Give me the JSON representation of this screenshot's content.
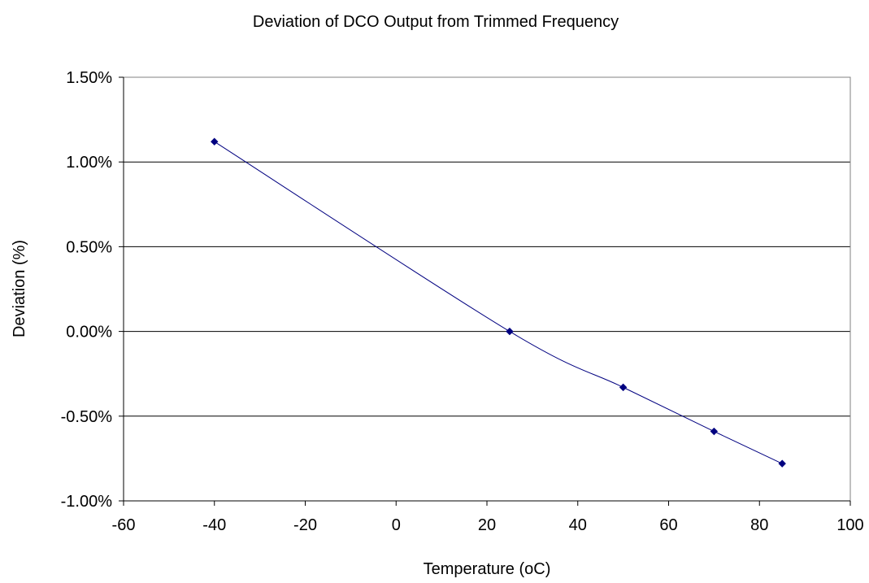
{
  "chart_data": {
    "type": "line",
    "title": "Deviation of DCO Output from Trimmed Frequency",
    "xlabel": "Temperature (oC)",
    "ylabel": "Deviation (%)",
    "xlim": [
      -60,
      100
    ],
    "ylim": [
      -1.0,
      1.5
    ],
    "x_ticks": [
      -60,
      -40,
      -20,
      0,
      20,
      40,
      60,
      80,
      100
    ],
    "x_tick_labels": [
      "-60",
      "-40",
      "-20",
      "0",
      "20",
      "40",
      "60",
      "80",
      "100"
    ],
    "y_ticks": [
      -1.0,
      -0.5,
      0.0,
      0.5,
      1.0,
      1.5
    ],
    "y_tick_labels": [
      "-1.00%",
      "-0.50%",
      "0.00%",
      "0.50%",
      "1.00%",
      "1.50%"
    ],
    "grid": "horizontal major gridlines",
    "legend": "none",
    "series": [
      {
        "x": [
          -40,
          25,
          50,
          70,
          85
        ],
        "y": [
          1.12,
          0.0,
          -0.33,
          -0.59,
          -0.78
        ],
        "color": "#000080",
        "marker": "diamond",
        "line_style": "smoothed"
      }
    ]
  }
}
